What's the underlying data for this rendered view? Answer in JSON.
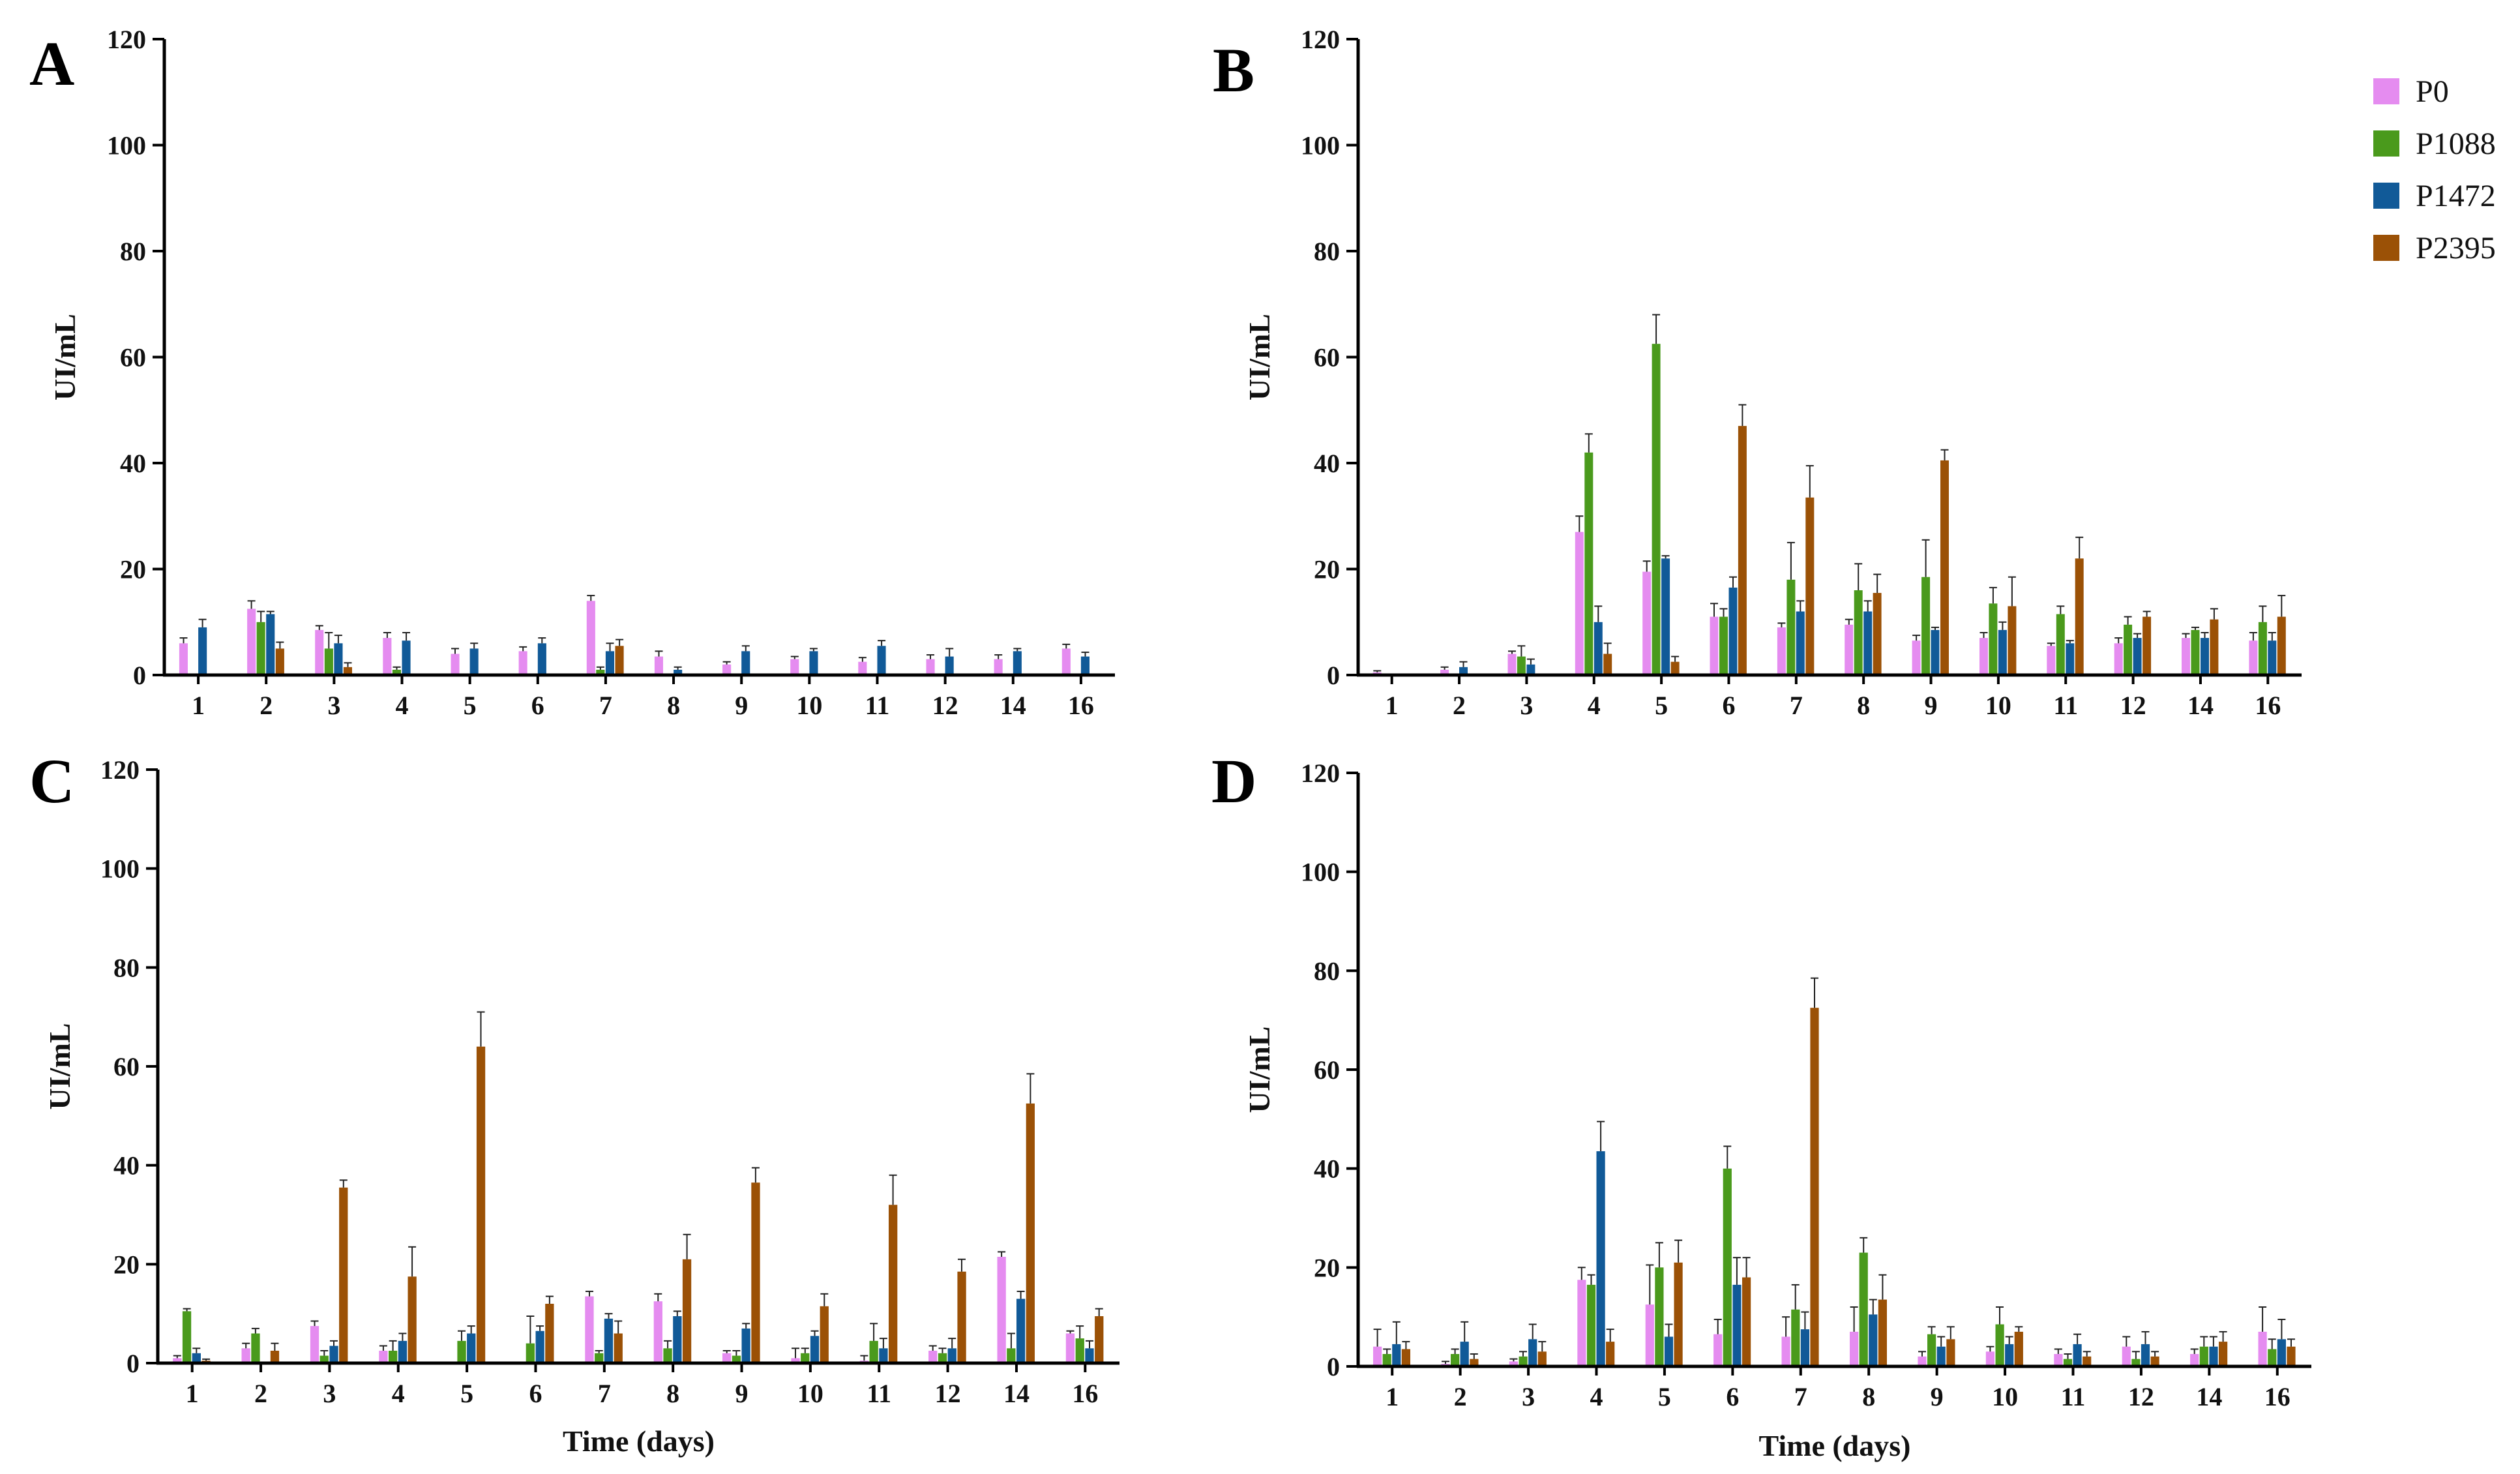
{
  "colors": {
    "P0": "#e58cf0",
    "P1088": "#4a9a1c",
    "P1472": "#115a98",
    "P2395": "#9b5106",
    "axis": "#000000",
    "error": "#222222"
  },
  "legend": [
    "P0",
    "P1088",
    "P1472",
    "P2395"
  ],
  "chart_data": [
    {
      "type": "bar",
      "panel": "A",
      "ylabel": "UI/mL",
      "xlabel": "",
      "ylim": [
        0,
        120
      ],
      "yticks": [
        0,
        20,
        40,
        60,
        80,
        100,
        120
      ],
      "categories": [
        "1",
        "2",
        "3",
        "4",
        "5",
        "6",
        "7",
        "8",
        "9",
        "10",
        "11",
        "12",
        "14",
        "16"
      ],
      "series": [
        {
          "name": "P0",
          "values": [
            6,
            12.5,
            8.5,
            7,
            4,
            4.5,
            14,
            3.5,
            2,
            3,
            2.5,
            3,
            3,
            5
          ],
          "errors": [
            1,
            1.5,
            0.8,
            1,
            1,
            0.8,
            1,
            1,
            0.5,
            0.5,
            0.8,
            0.8,
            0.8,
            0.8
          ]
        },
        {
          "name": "P1088",
          "values": [
            0,
            10,
            5,
            1,
            0,
            0,
            1,
            0,
            0,
            0,
            0,
            0,
            0,
            0
          ],
          "errors": [
            0,
            2,
            3,
            0.5,
            0,
            0,
            0.5,
            0,
            0,
            0,
            0,
            0,
            0,
            0
          ]
        },
        {
          "name": "P1472",
          "values": [
            9,
            11.5,
            6,
            6.5,
            5,
            6,
            4.5,
            1,
            4.5,
            4.5,
            5.5,
            3.5,
            4.5,
            3.5
          ],
          "errors": [
            1.5,
            0.5,
            1.5,
            1.5,
            1,
            1,
            1.5,
            0.5,
            1,
            0.5,
            1,
            1.5,
            0.5,
            0.8
          ]
        },
        {
          "name": "P2395",
          "values": [
            0,
            5,
            1.5,
            0,
            0,
            0,
            5.5,
            0,
            0,
            0,
            0,
            0,
            0,
            0
          ],
          "errors": [
            0,
            1.2,
            0.8,
            0,
            0,
            0,
            1.2,
            0,
            0,
            0,
            0,
            0,
            0,
            0
          ]
        }
      ]
    },
    {
      "type": "bar",
      "panel": "B",
      "ylabel": "UI/mL",
      "xlabel": "",
      "ylim": [
        0,
        120
      ],
      "yticks": [
        0,
        20,
        40,
        60,
        80,
        100,
        120
      ],
      "categories": [
        "1",
        "2",
        "3",
        "4",
        "5",
        "6",
        "7",
        "8",
        "9",
        "10",
        "11",
        "12",
        "14",
        "16"
      ],
      "series": [
        {
          "name": "P0",
          "values": [
            0.5,
            1,
            4,
            27,
            19.5,
            11,
            9,
            9.5,
            6.5,
            7,
            5.5,
            6,
            7,
            6.5
          ],
          "errors": [
            0.3,
            0.5,
            0.5,
            3,
            2,
            2.5,
            0.8,
            1,
            1,
            1,
            0.5,
            1,
            0.8,
            1.5
          ]
        },
        {
          "name": "P1088",
          "values": [
            0,
            0,
            3.5,
            42,
            62.5,
            11,
            18,
            16,
            18.5,
            13.5,
            11.5,
            9.5,
            8.5,
            10
          ],
          "errors": [
            0,
            0,
            2,
            3.5,
            5.5,
            1.5,
            7,
            5,
            7,
            3,
            1.5,
            1.5,
            0.5,
            3
          ]
        },
        {
          "name": "P1472",
          "values": [
            0,
            1.5,
            2,
            10,
            22,
            16.5,
            12,
            12,
            8.5,
            8.5,
            6,
            7,
            7,
            6.5
          ],
          "errors": [
            0,
            1,
            1,
            3,
            0.5,
            2,
            2,
            2,
            0.5,
            1.5,
            0.5,
            0.8,
            1,
            1.5
          ]
        },
        {
          "name": "P2395",
          "values": [
            0,
            0,
            0,
            4,
            2.5,
            47,
            33.5,
            15.5,
            40.5,
            13,
            22,
            11,
            10.5,
            11
          ],
          "errors": [
            0,
            0,
            0,
            2,
            1,
            4,
            6,
            3.5,
            2,
            5.5,
            4,
            1,
            2,
            4
          ]
        }
      ]
    },
    {
      "type": "bar",
      "panel": "C",
      "ylabel": "UI/mL",
      "xlabel": "Time (days)",
      "ylim": [
        0,
        120
      ],
      "yticks": [
        0,
        20,
        40,
        60,
        80,
        100,
        120
      ],
      "categories": [
        "1",
        "2",
        "3",
        "4",
        "5",
        "6",
        "7",
        "8",
        "9",
        "10",
        "11",
        "12",
        "14",
        "16"
      ],
      "series": [
        {
          "name": "P0",
          "values": [
            1,
            3,
            7.5,
            2.5,
            0,
            0,
            13.5,
            12.5,
            2,
            1,
            0.5,
            2.5,
            21.5,
            6
          ],
          "errors": [
            0.5,
            1,
            1,
            1,
            0,
            0,
            1,
            1.5,
            0.5,
            2,
            1,
            1,
            1,
            0.5
          ]
        },
        {
          "name": "P1088",
          "values": [
            10.5,
            6,
            1.5,
            2.5,
            4.5,
            4,
            2,
            3,
            1.5,
            2,
            4.5,
            2,
            3,
            5
          ],
          "errors": [
            0.5,
            1,
            1,
            2,
            2,
            5.5,
            0.5,
            1.5,
            1,
            1,
            3.5,
            1,
            3,
            2.5
          ]
        },
        {
          "name": "P1472",
          "values": [
            2,
            0,
            3.5,
            4.5,
            6,
            6.5,
            9,
            9.5,
            7,
            5.5,
            3,
            3,
            13,
            3
          ],
          "errors": [
            1,
            0,
            1,
            1.5,
            1.5,
            1,
            1,
            1,
            1,
            1,
            2,
            2,
            1.5,
            1.5
          ]
        },
        {
          "name": "P2395",
          "values": [
            0.5,
            2.5,
            35.5,
            17.5,
            64,
            12,
            6,
            21,
            36.5,
            11.5,
            32,
            18.5,
            52.5,
            9.5
          ],
          "errors": [
            0.3,
            1.5,
            1.5,
            6,
            7,
            1.5,
            2.5,
            5,
            3,
            2.5,
            6,
            2.5,
            6,
            1.5
          ]
        }
      ]
    },
    {
      "type": "bar",
      "panel": "D",
      "ylabel": "UI/mL",
      "xlabel": "Time (days)",
      "ylim": [
        0,
        120
      ],
      "yticks": [
        0,
        20,
        40,
        60,
        80,
        100,
        120
      ],
      "categories": [
        "1",
        "2",
        "3",
        "4",
        "5",
        "6",
        "7",
        "8",
        "9",
        "10",
        "11",
        "12",
        "14",
        "16"
      ],
      "series": [
        {
          "name": "P0",
          "values": [
            4,
            0.5,
            1,
            17.5,
            12.5,
            6.5,
            6,
            7,
            2,
            3,
            2.5,
            4,
            2.5,
            7
          ],
          "errors": [
            3.5,
            0.5,
            0.5,
            2.5,
            8,
            3,
            4,
            5,
            1,
            1,
            1,
            2,
            1,
            5
          ]
        },
        {
          "name": "P1088",
          "values": [
            2.5,
            2.5,
            2,
            16.5,
            20,
            40,
            11.5,
            23,
            6.5,
            8.5,
            1.5,
            1.5,
            4,
            3.5
          ],
          "errors": [
            1,
            1,
            1,
            2,
            5,
            4.5,
            5,
            3,
            1.5,
            3.5,
            1,
            1.5,
            2,
            2
          ]
        },
        {
          "name": "P1472",
          "values": [
            4.5,
            5,
            5.5,
            43.5,
            6,
            16.5,
            7.5,
            10.5,
            4,
            4.5,
            4.5,
            4.5,
            4,
            5.5
          ],
          "errors": [
            4.5,
            4,
            3,
            6,
            2.5,
            5.5,
            3.5,
            3,
            2,
            1.5,
            2,
            2.5,
            2,
            4
          ]
        },
        {
          "name": "P2395",
          "values": [
            3.5,
            1.5,
            3,
            5,
            21,
            18,
            72.5,
            13.5,
            5.5,
            7,
            2,
            2,
            5,
            4
          ],
          "errors": [
            1.5,
            1,
            2,
            2.5,
            4.5,
            4,
            6,
            5,
            2.5,
            1,
            1,
            1,
            2,
            1.5
          ]
        }
      ]
    }
  ]
}
